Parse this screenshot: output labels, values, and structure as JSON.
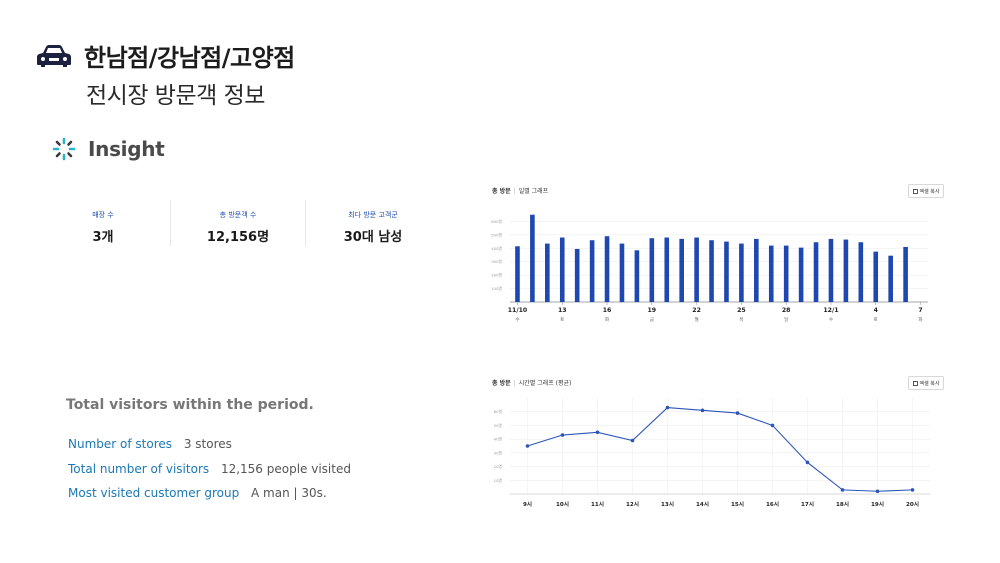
{
  "header": {
    "title": "한남점/강남점/고양점",
    "subtitle": "전시장 방문객 정보",
    "icon": "car-icon"
  },
  "insight": {
    "label": "Insight",
    "icon": "loading-spinner-icon"
  },
  "stats": [
    {
      "label": "매장 수",
      "value": "3개"
    },
    {
      "label": "총 방문객 수",
      "value": "12,156명"
    },
    {
      "label": "최다 방문 고객군",
      "value": "30대 남성"
    }
  ],
  "summary": {
    "heading": "Total visitors within the period.",
    "rows": [
      {
        "key": "Number of stores",
        "value": "3 stores"
      },
      {
        "key": "Total number of visitors",
        "value": "12,156 people visited"
      },
      {
        "key": "Most visited customer group",
        "value": "A man | 30s."
      }
    ]
  },
  "daily_panel": {
    "title_main": "총 방문",
    "title_sub": "일별 그래프",
    "excel_label": "엑셀 복사"
  },
  "hourly_panel": {
    "title_main": "총 방문",
    "title_sub": "시간별 그래프 (평균)",
    "excel_label": "엑셀 복사"
  },
  "colors": {
    "bar": "#1e47b0",
    "line": "#2c55b8",
    "stat_label": "#1f4fb0",
    "summary_key": "#1b78b5"
  },
  "chart_data": [
    {
      "type": "bar",
      "title": "총 방문 | 일별 그래프",
      "ylim": [
        0,
        700
      ],
      "yticks": [
        100,
        200,
        300,
        400,
        500,
        600
      ],
      "ytick_labels": [
        "100명",
        "200명",
        "300명",
        "400명",
        "500명",
        "600명"
      ],
      "categories": [
        "11/10",
        "11",
        "12",
        "13",
        "14",
        "15",
        "16",
        "17",
        "18",
        "19",
        "20",
        "21",
        "22",
        "23",
        "24",
        "25",
        "26",
        "27",
        "28",
        "29",
        "30",
        "12/1",
        "2",
        "3",
        "4",
        "5",
        "6",
        "7"
      ],
      "xtick_labels": [
        "11/10",
        "",
        "",
        "13",
        "",
        "",
        "16",
        "",
        "",
        "19",
        "",
        "",
        "22",
        "",
        "",
        "25",
        "",
        "",
        "28",
        "",
        "",
        "12/1",
        "",
        "",
        "4",
        "",
        "",
        "7"
      ],
      "weekday_labels": [
        "수",
        "",
        "",
        "토",
        "",
        "",
        "화",
        "",
        "",
        "금",
        "",
        "",
        "월",
        "",
        "",
        "목",
        "",
        "",
        "일",
        "",
        "",
        "수",
        "",
        "",
        "토",
        "",
        "",
        "화"
      ],
      "values": [
        415,
        650,
        435,
        480,
        395,
        460,
        490,
        435,
        385,
        475,
        480,
        470,
        480,
        460,
        450,
        435,
        470,
        420,
        420,
        405,
        445,
        470,
        465,
        445,
        375,
        345,
        410,
        null
      ],
      "grid": true
    },
    {
      "type": "line",
      "title": "총 방문 | 시간별 그래프 (평균)",
      "ylim": [
        0,
        70
      ],
      "yticks": [
        10,
        20,
        30,
        40,
        50,
        60
      ],
      "ytick_labels": [
        "10명",
        "20명",
        "30명",
        "40명",
        "50명",
        "60명"
      ],
      "categories": [
        "9시",
        "10시",
        "11시",
        "12시",
        "13시",
        "14시",
        "15시",
        "16시",
        "17시",
        "18시",
        "19시",
        "20시"
      ],
      "values": [
        35,
        43,
        45,
        39,
        63,
        61,
        59,
        50,
        23,
        3,
        2,
        3
      ],
      "grid": true
    }
  ]
}
